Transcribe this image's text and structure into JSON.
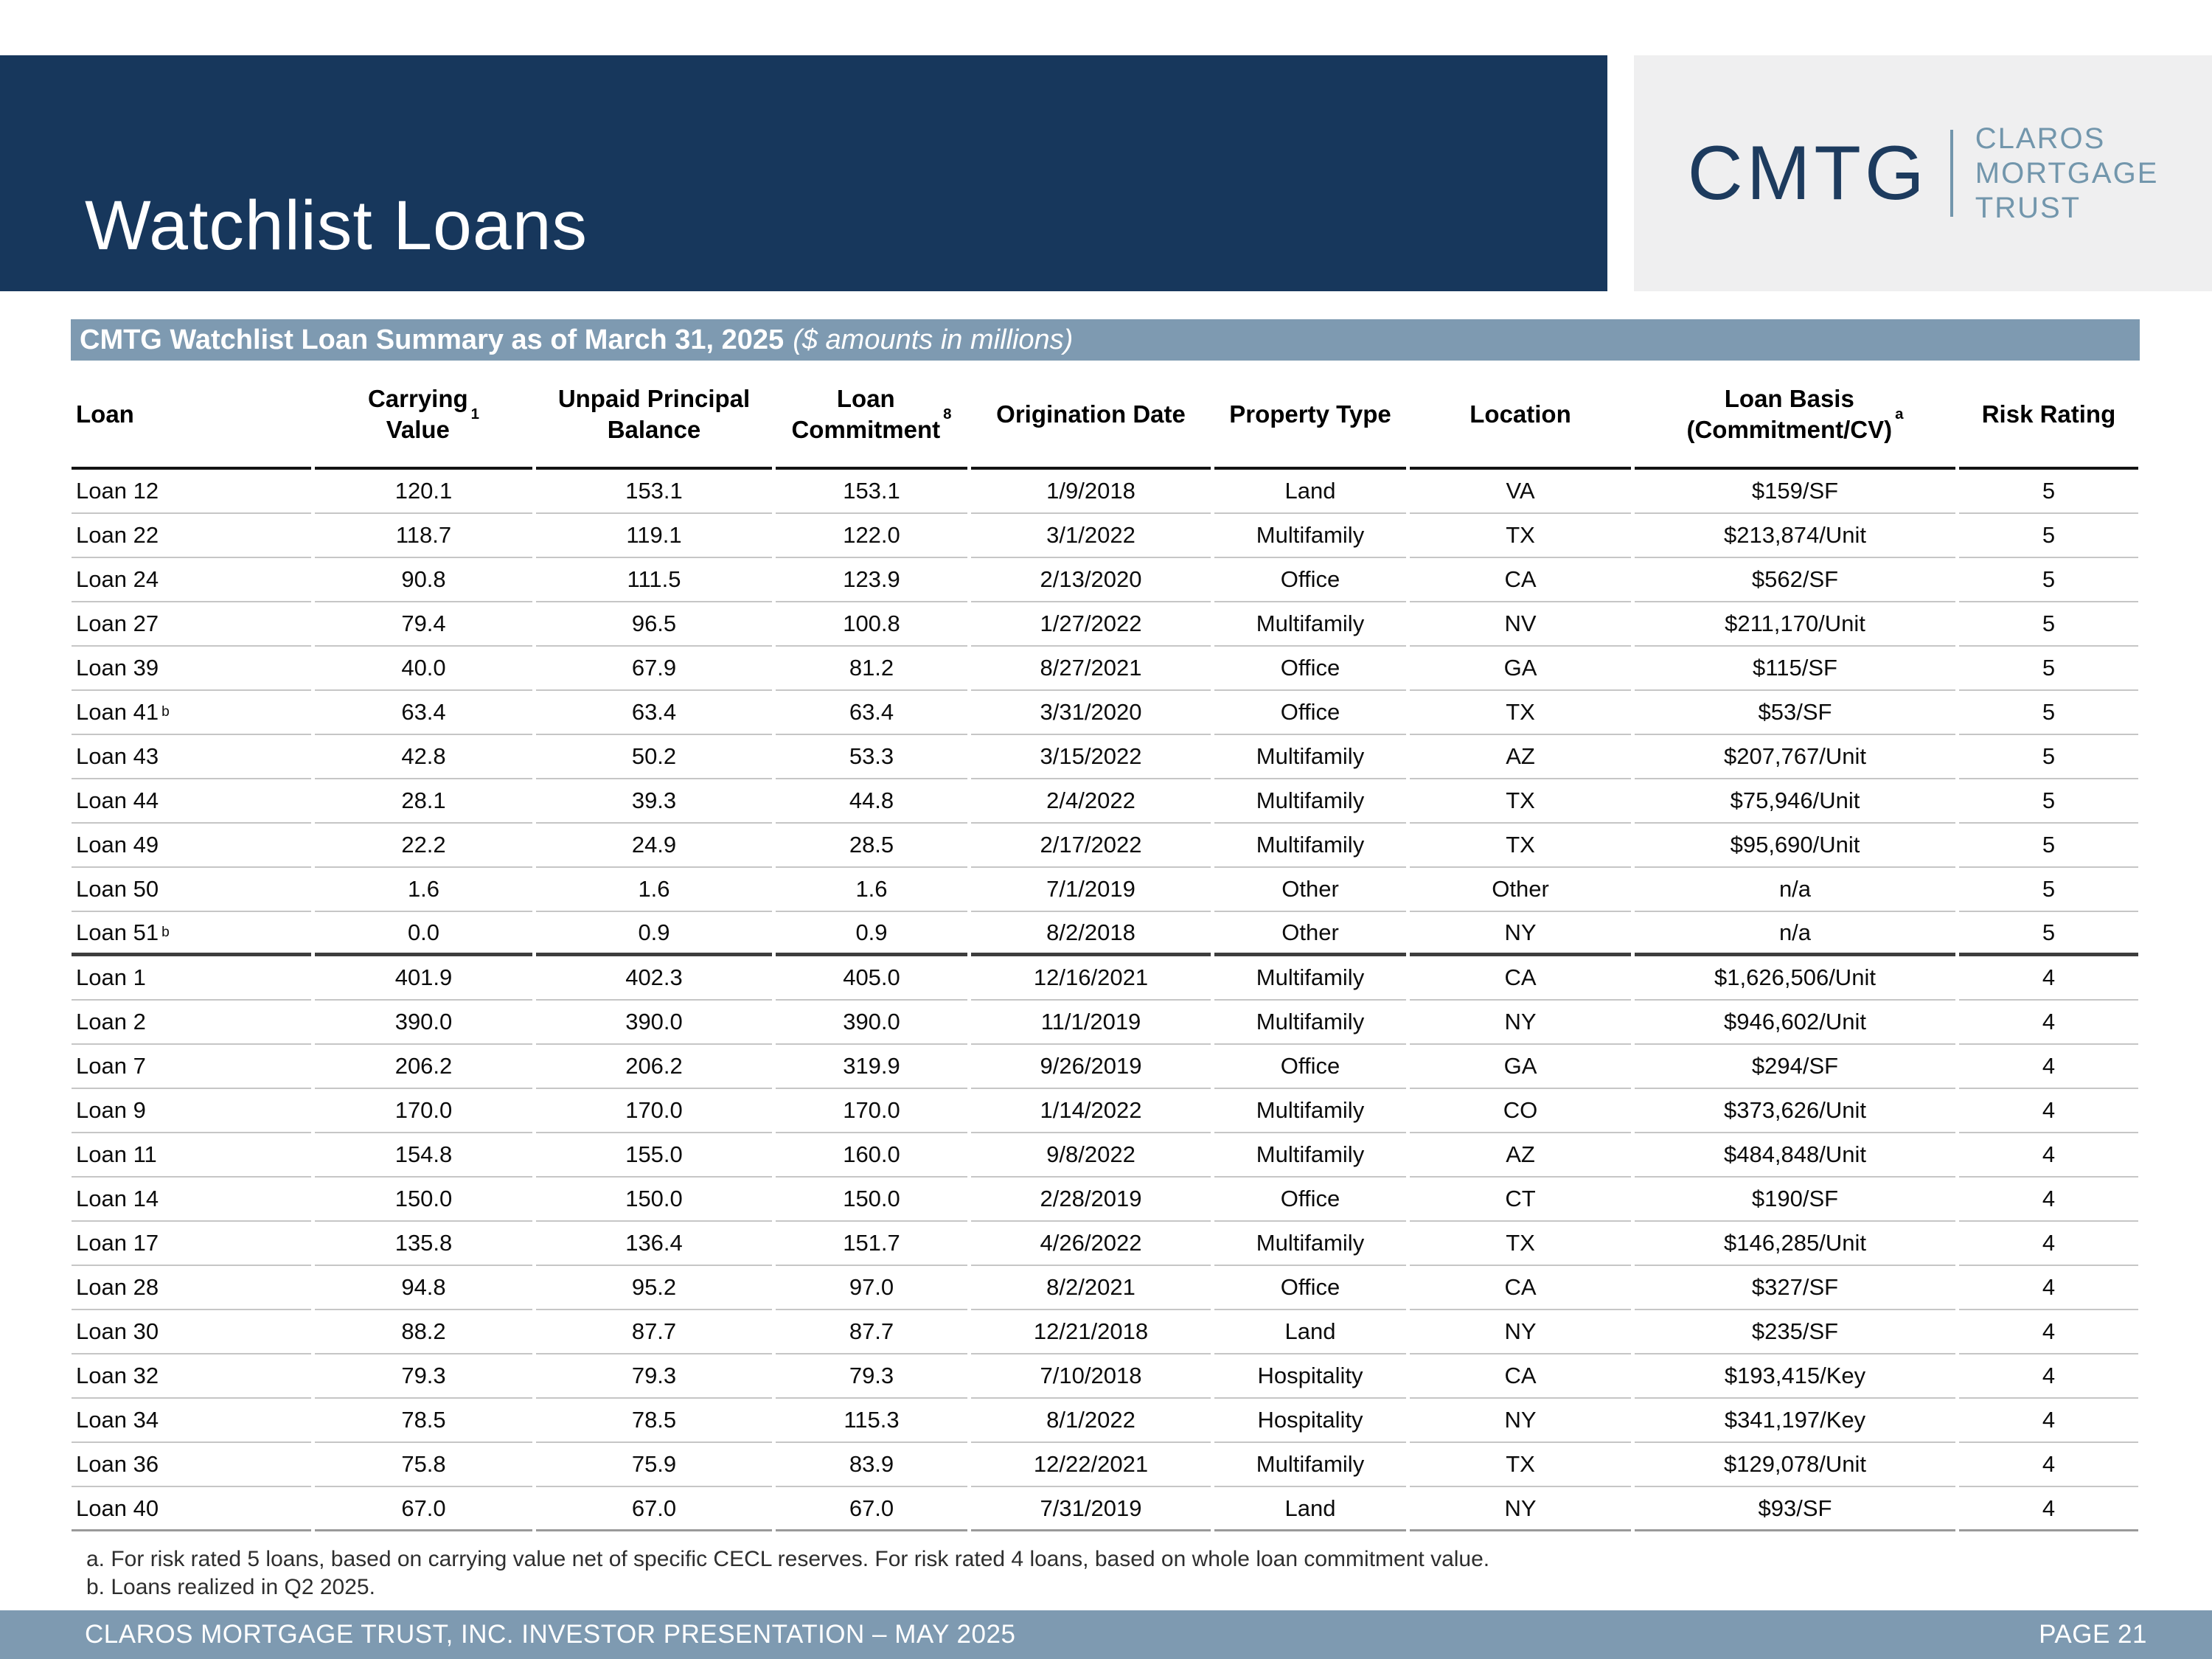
{
  "slide_title": "Watchlist Loans",
  "logo": {
    "acronym": "CMTG",
    "company_lines": [
      "CLAROS",
      "MORTGAGE",
      "TRUST"
    ]
  },
  "table_header_bar": {
    "bold": "CMTG Watchlist Loan Summary as of March 31, 2025",
    "italic": "($ amounts in millions)"
  },
  "table": {
    "columns": [
      {
        "id": "loan",
        "lines": [
          "Loan"
        ],
        "sup": ""
      },
      {
        "id": "carrying_value",
        "lines": [
          "Carrying",
          "Value"
        ],
        "sup": "1"
      },
      {
        "id": "unpaid_principal_balance",
        "lines": [
          "Unpaid Principal",
          "Balance"
        ],
        "sup": ""
      },
      {
        "id": "loan_commitment",
        "lines": [
          "Loan",
          "Commitment"
        ],
        "sup": "8"
      },
      {
        "id": "origination_date",
        "lines": [
          "Origination Date"
        ],
        "sup": ""
      },
      {
        "id": "property_type",
        "lines": [
          "Property Type"
        ],
        "sup": ""
      },
      {
        "id": "location",
        "lines": [
          "Location"
        ],
        "sup": ""
      },
      {
        "id": "loan_basis",
        "lines": [
          "Loan Basis",
          "(Commitment/CV)"
        ],
        "sup": "a"
      },
      {
        "id": "risk_rating",
        "lines": [
          "Risk Rating"
        ],
        "sup": ""
      }
    ],
    "rows": [
      {
        "loan": "Loan 12",
        "sup": "",
        "carrying_value": "120.1",
        "unpaid_principal_balance": "153.1",
        "loan_commitment": "153.1",
        "origination_date": "1/9/2018",
        "property_type": "Land",
        "location": "VA",
        "loan_basis": "$159/SF",
        "risk_rating": "5",
        "group_end": false
      },
      {
        "loan": "Loan 22",
        "sup": "",
        "carrying_value": "118.7",
        "unpaid_principal_balance": "119.1",
        "loan_commitment": "122.0",
        "origination_date": "3/1/2022",
        "property_type": "Multifamily",
        "location": "TX",
        "loan_basis": "$213,874/Unit",
        "risk_rating": "5",
        "group_end": false
      },
      {
        "loan": "Loan 24",
        "sup": "",
        "carrying_value": "90.8",
        "unpaid_principal_balance": "111.5",
        "loan_commitment": "123.9",
        "origination_date": "2/13/2020",
        "property_type": "Office",
        "location": "CA",
        "loan_basis": "$562/SF",
        "risk_rating": "5",
        "group_end": false
      },
      {
        "loan": "Loan 27",
        "sup": "",
        "carrying_value": "79.4",
        "unpaid_principal_balance": "96.5",
        "loan_commitment": "100.8",
        "origination_date": "1/27/2022",
        "property_type": "Multifamily",
        "location": "NV",
        "loan_basis": "$211,170/Unit",
        "risk_rating": "5",
        "group_end": false
      },
      {
        "loan": "Loan 39",
        "sup": "",
        "carrying_value": "40.0",
        "unpaid_principal_balance": "67.9",
        "loan_commitment": "81.2",
        "origination_date": "8/27/2021",
        "property_type": "Office",
        "location": "GA",
        "loan_basis": "$115/SF",
        "risk_rating": "5",
        "group_end": false
      },
      {
        "loan": "Loan 41",
        "sup": "b",
        "carrying_value": "63.4",
        "unpaid_principal_balance": "63.4",
        "loan_commitment": "63.4",
        "origination_date": "3/31/2020",
        "property_type": "Office",
        "location": "TX",
        "loan_basis": "$53/SF",
        "risk_rating": "5",
        "group_end": false
      },
      {
        "loan": "Loan 43",
        "sup": "",
        "carrying_value": "42.8",
        "unpaid_principal_balance": "50.2",
        "loan_commitment": "53.3",
        "origination_date": "3/15/2022",
        "property_type": "Multifamily",
        "location": "AZ",
        "loan_basis": "$207,767/Unit",
        "risk_rating": "5",
        "group_end": false
      },
      {
        "loan": "Loan 44",
        "sup": "",
        "carrying_value": "28.1",
        "unpaid_principal_balance": "39.3",
        "loan_commitment": "44.8",
        "origination_date": "2/4/2022",
        "property_type": "Multifamily",
        "location": "TX",
        "loan_basis": "$75,946/Unit",
        "risk_rating": "5",
        "group_end": false
      },
      {
        "loan": "Loan 49",
        "sup": "",
        "carrying_value": "22.2",
        "unpaid_principal_balance": "24.9",
        "loan_commitment": "28.5",
        "origination_date": "2/17/2022",
        "property_type": "Multifamily",
        "location": "TX",
        "loan_basis": "$95,690/Unit",
        "risk_rating": "5",
        "group_end": false
      },
      {
        "loan": "Loan 50",
        "sup": "",
        "carrying_value": "1.6",
        "unpaid_principal_balance": "1.6",
        "loan_commitment": "1.6",
        "origination_date": "7/1/2019",
        "property_type": "Other",
        "location": "Other",
        "loan_basis": "n/a",
        "risk_rating": "5",
        "group_end": false
      },
      {
        "loan": "Loan 51",
        "sup": "b",
        "carrying_value": "0.0",
        "unpaid_principal_balance": "0.9",
        "loan_commitment": "0.9",
        "origination_date": "8/2/2018",
        "property_type": "Other",
        "location": "NY",
        "loan_basis": "n/a",
        "risk_rating": "5",
        "group_end": true
      },
      {
        "loan": "Loan 1",
        "sup": "",
        "carrying_value": "401.9",
        "unpaid_principal_balance": "402.3",
        "loan_commitment": "405.0",
        "origination_date": "12/16/2021",
        "property_type": "Multifamily",
        "location": "CA",
        "loan_basis": "$1,626,506/Unit",
        "risk_rating": "4",
        "group_end": false
      },
      {
        "loan": "Loan 2",
        "sup": "",
        "carrying_value": "390.0",
        "unpaid_principal_balance": "390.0",
        "loan_commitment": "390.0",
        "origination_date": "11/1/2019",
        "property_type": "Multifamily",
        "location": "NY",
        "loan_basis": "$946,602/Unit",
        "risk_rating": "4",
        "group_end": false
      },
      {
        "loan": "Loan 7",
        "sup": "",
        "carrying_value": "206.2",
        "unpaid_principal_balance": "206.2",
        "loan_commitment": "319.9",
        "origination_date": "9/26/2019",
        "property_type": "Office",
        "location": "GA",
        "loan_basis": "$294/SF",
        "risk_rating": "4",
        "group_end": false
      },
      {
        "loan": "Loan 9",
        "sup": "",
        "carrying_value": "170.0",
        "unpaid_principal_balance": "170.0",
        "loan_commitment": "170.0",
        "origination_date": "1/14/2022",
        "property_type": "Multifamily",
        "location": "CO",
        "loan_basis": "$373,626/Unit",
        "risk_rating": "4",
        "group_end": false
      },
      {
        "loan": "Loan 11",
        "sup": "",
        "carrying_value": "154.8",
        "unpaid_principal_balance": "155.0",
        "loan_commitment": "160.0",
        "origination_date": "9/8/2022",
        "property_type": "Multifamily",
        "location": "AZ",
        "loan_basis": "$484,848/Unit",
        "risk_rating": "4",
        "group_end": false
      },
      {
        "loan": "Loan 14",
        "sup": "",
        "carrying_value": "150.0",
        "unpaid_principal_balance": "150.0",
        "loan_commitment": "150.0",
        "origination_date": "2/28/2019",
        "property_type": "Office",
        "location": "CT",
        "loan_basis": "$190/SF",
        "risk_rating": "4",
        "group_end": false
      },
      {
        "loan": "Loan 17",
        "sup": "",
        "carrying_value": "135.8",
        "unpaid_principal_balance": "136.4",
        "loan_commitment": "151.7",
        "origination_date": "4/26/2022",
        "property_type": "Multifamily",
        "location": "TX",
        "loan_basis": "$146,285/Unit",
        "risk_rating": "4",
        "group_end": false
      },
      {
        "loan": "Loan 28",
        "sup": "",
        "carrying_value": "94.8",
        "unpaid_principal_balance": "95.2",
        "loan_commitment": "97.0",
        "origination_date": "8/2/2021",
        "property_type": "Office",
        "location": "CA",
        "loan_basis": "$327/SF",
        "risk_rating": "4",
        "group_end": false
      },
      {
        "loan": "Loan 30",
        "sup": "",
        "carrying_value": "88.2",
        "unpaid_principal_balance": "87.7",
        "loan_commitment": "87.7",
        "origination_date": "12/21/2018",
        "property_type": "Land",
        "location": "NY",
        "loan_basis": "$235/SF",
        "risk_rating": "4",
        "group_end": false
      },
      {
        "loan": "Loan 32",
        "sup": "",
        "carrying_value": "79.3",
        "unpaid_principal_balance": "79.3",
        "loan_commitment": "79.3",
        "origination_date": "7/10/2018",
        "property_type": "Hospitality",
        "location": "CA",
        "loan_basis": "$193,415/Key",
        "risk_rating": "4",
        "group_end": false
      },
      {
        "loan": "Loan 34",
        "sup": "",
        "carrying_value": "78.5",
        "unpaid_principal_balance": "78.5",
        "loan_commitment": "115.3",
        "origination_date": "8/1/2022",
        "property_type": "Hospitality",
        "location": "NY",
        "loan_basis": "$341,197/Key",
        "risk_rating": "4",
        "group_end": false
      },
      {
        "loan": "Loan 36",
        "sup": "",
        "carrying_value": "75.8",
        "unpaid_principal_balance": "75.9",
        "loan_commitment": "83.9",
        "origination_date": "12/22/2021",
        "property_type": "Multifamily",
        "location": "TX",
        "loan_basis": "$129,078/Unit",
        "risk_rating": "4",
        "group_end": false
      },
      {
        "loan": "Loan 40",
        "sup": "",
        "carrying_value": "67.0",
        "unpaid_principal_balance": "67.0",
        "loan_commitment": "67.0",
        "origination_date": "7/31/2019",
        "property_type": "Land",
        "location": "NY",
        "loan_basis": "$93/SF",
        "risk_rating": "4",
        "group_end": false
      }
    ]
  },
  "footnotes": [
    "a. For risk rated 5 loans, based on carrying value net of specific CECL reserves. For risk rated 4 loans, based on whole loan commitment value.",
    "b. Loans realized in Q2 2025."
  ],
  "footer": {
    "left": "CLAROS MORTGAGE TRUST, INC. INVESTOR PRESENTATION – MAY 2025",
    "right": "PAGE 21"
  },
  "colors": {
    "navy": "#17375c",
    "slate_band": "#7e9ab1",
    "logo_background": "#efeff0",
    "logo_accent": "#7296ac"
  }
}
